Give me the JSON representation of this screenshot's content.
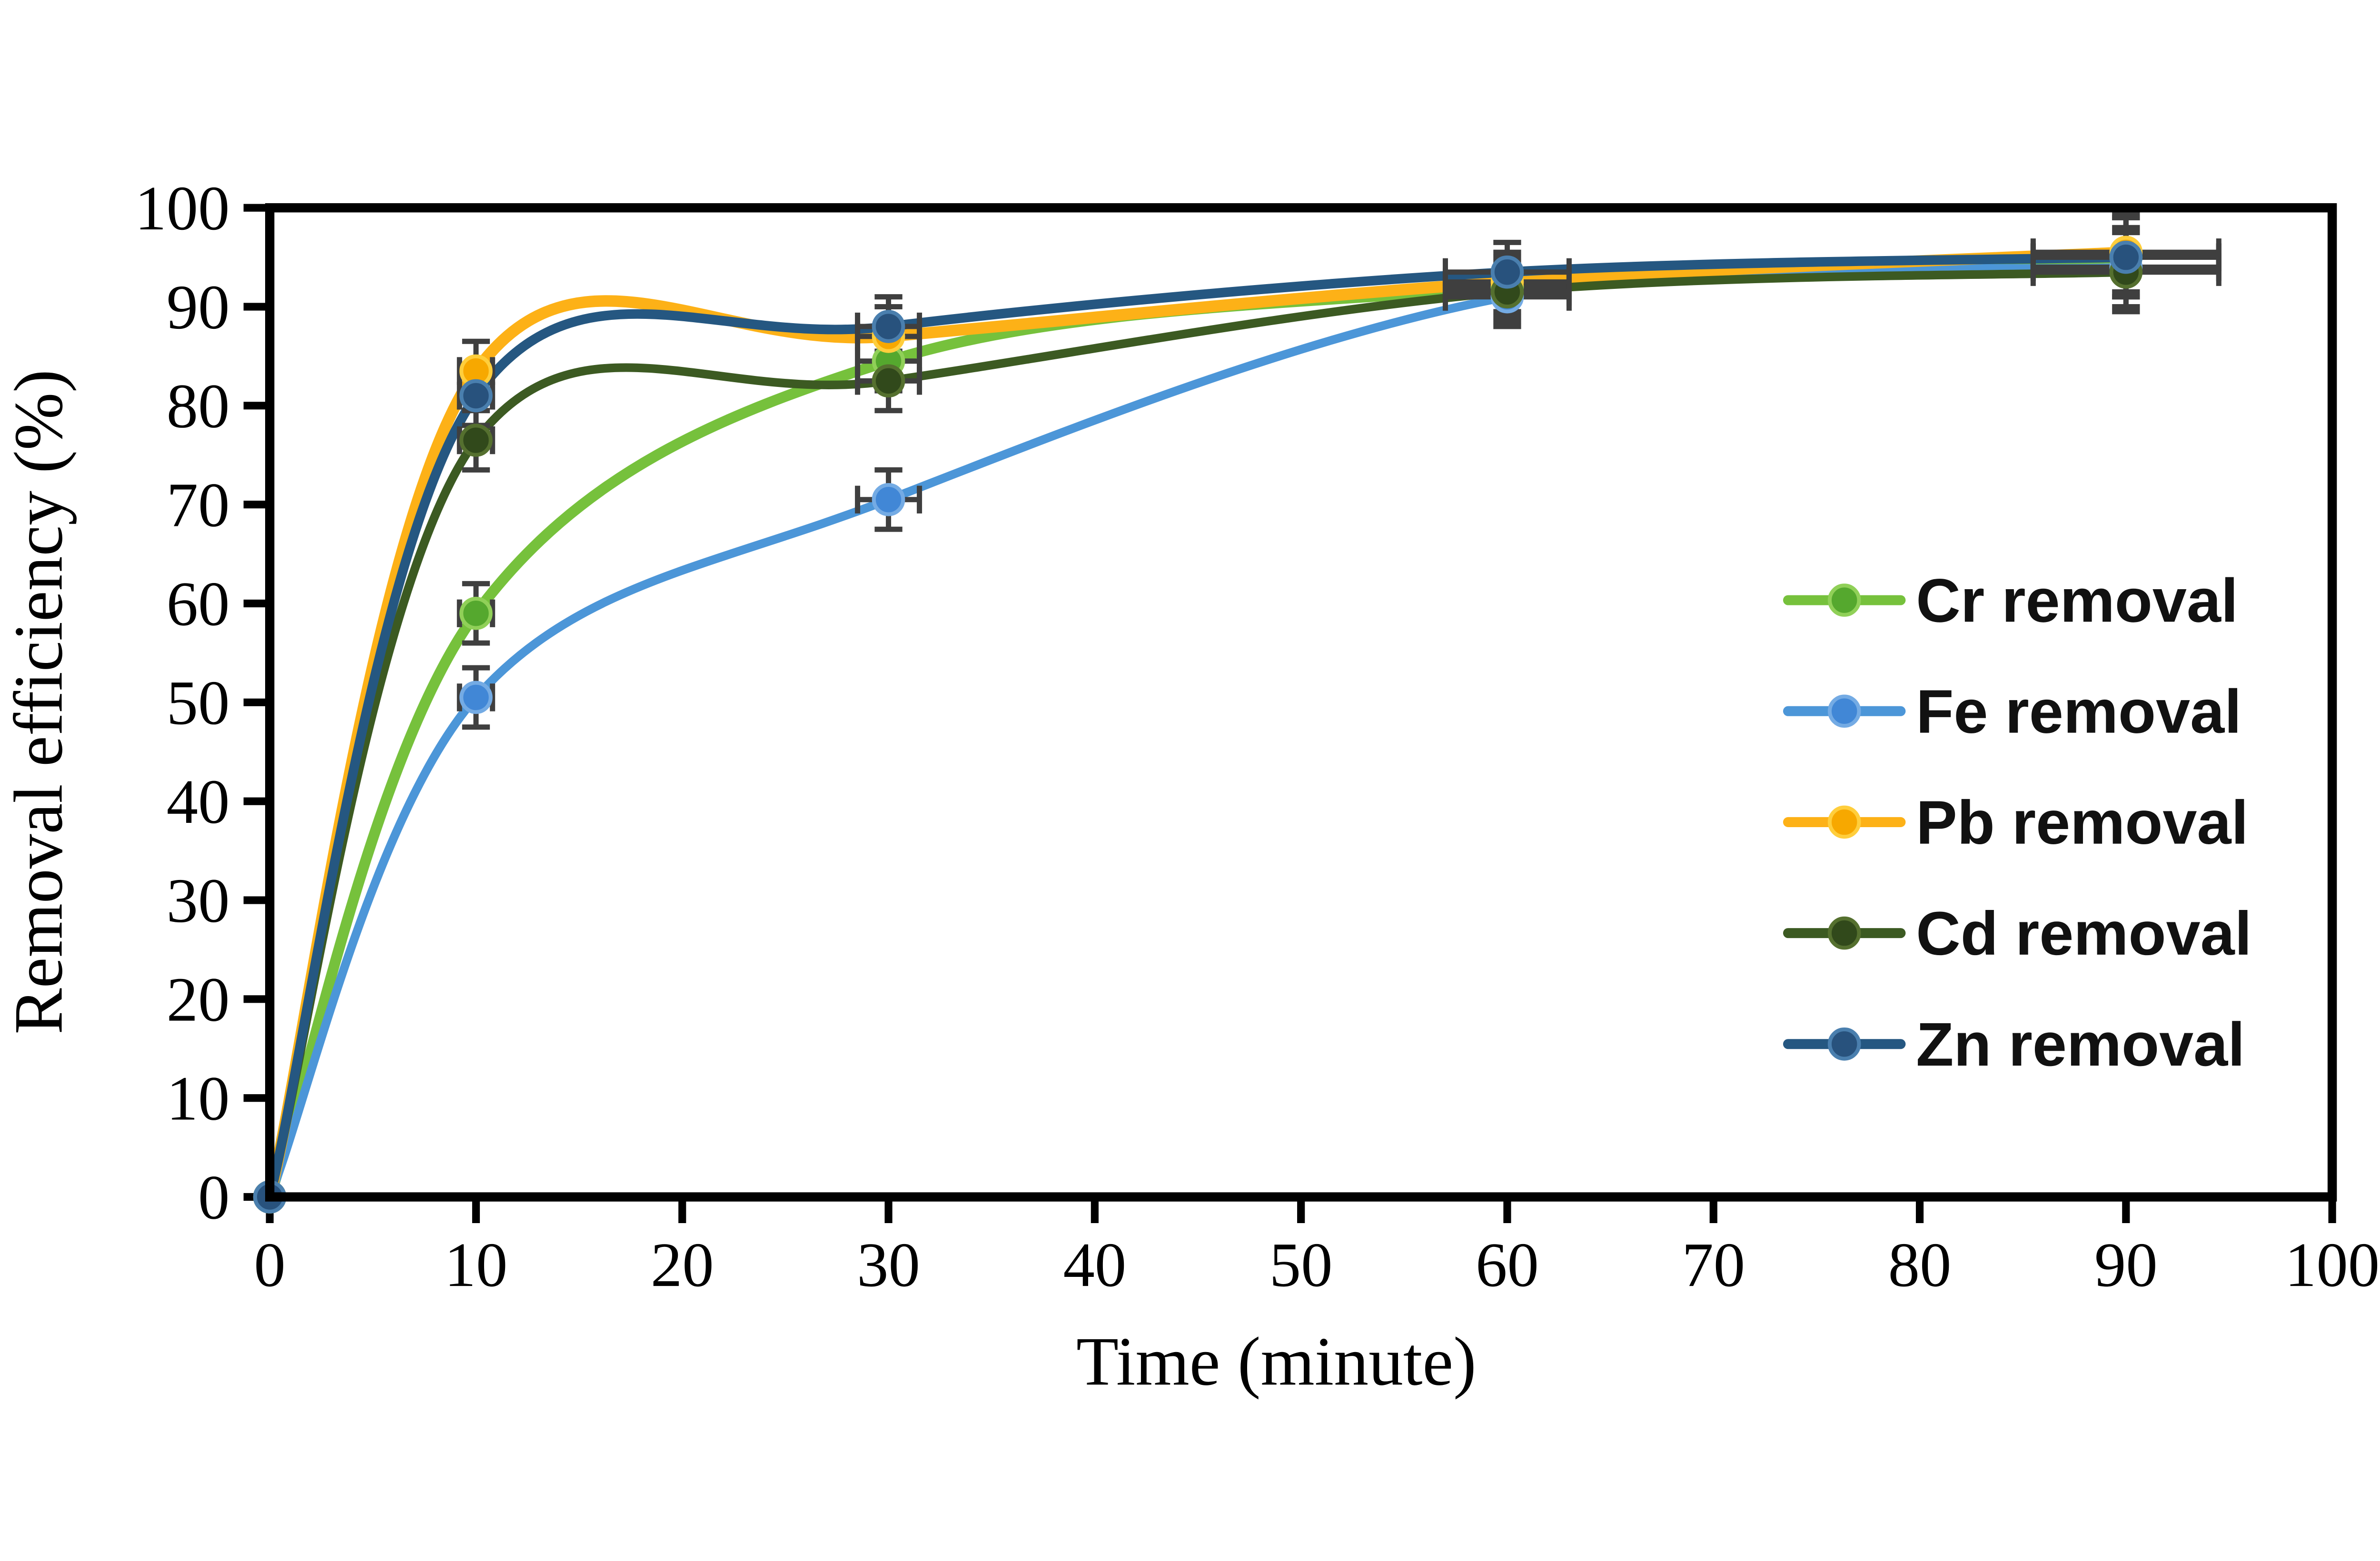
{
  "figure": {
    "background": "#FFFFFF",
    "frame_color": "#000000",
    "tick_color": "#000000",
    "text_color": "#000000",
    "error_bar_color": "#3F3F3F"
  },
  "chart_data": {
    "type": "line",
    "title": "",
    "xlabel": "Time (minute)",
    "ylabel": "Removal efficiency (%)",
    "x": [
      0,
      10,
      30,
      60,
      90
    ],
    "series": [
      {
        "name": "Cr removal",
        "line_color": "#76C13C",
        "marker_color": "#55A82E",
        "marker_rim": "#90D058",
        "values": [
          0,
          59,
          84.5,
          92,
          95
        ]
      },
      {
        "name": "Fe removal",
        "line_color": "#4C96D8",
        "marker_color": "#4187D6",
        "marker_rim": "#74ABE4",
        "values": [
          0,
          50.5,
          70.5,
          91,
          94
        ]
      },
      {
        "name": "Pb removal",
        "line_color": "#FDB117",
        "marker_color": "#F7A800",
        "marker_rim": "#FFCE3C",
        "values": [
          0,
          83.5,
          87,
          92.5,
          95.5
        ]
      },
      {
        "name": "Cd removal",
        "line_color": "#3C5A22",
        "marker_color": "#31491B",
        "marker_rim": "#55702F",
        "values": [
          0,
          76.5,
          82.5,
          91.5,
          93.5
        ]
      },
      {
        "name": "Zn removal",
        "line_color": "#255781",
        "marker_color": "#28527D",
        "marker_rim": "#4A7FAE",
        "values": [
          0,
          81,
          88,
          93.5,
          95
        ]
      }
    ],
    "error_bars": {
      "color": "#3F3F3F",
      "y_err": [
        0,
        3,
        3,
        3,
        4
      ],
      "x_err": [
        0,
        0.8,
        1.5,
        3,
        4.5
      ]
    },
    "xlim": [
      0,
      100
    ],
    "ylim": [
      0,
      100
    ],
    "x_ticks": [
      0,
      10,
      20,
      30,
      40,
      50,
      60,
      70,
      80,
      90,
      100
    ],
    "y_ticks": [
      0,
      10,
      20,
      30,
      40,
      50,
      60,
      70,
      80,
      90,
      100
    ],
    "grid": false,
    "legend_position": "right-middle"
  }
}
